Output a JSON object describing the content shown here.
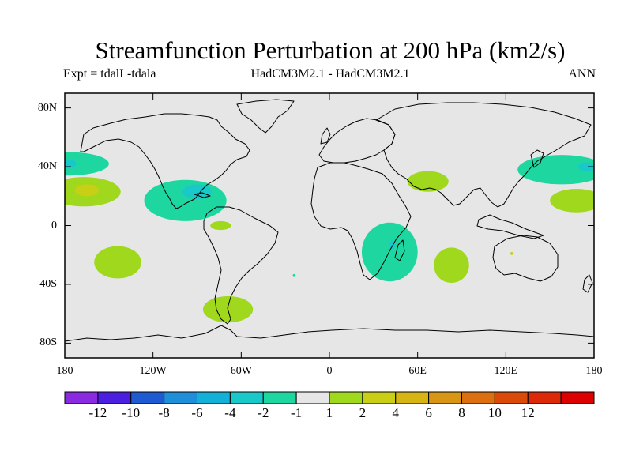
{
  "title": "Streamfunction Perturbation at 200 hPa (km2/s)",
  "subtitle_left": "Expt = tdalL-tdala",
  "subtitle_center": "HadCM3M2.1 - HadCM3M2.1",
  "subtitle_right": "ANN",
  "map": {
    "projection": "cylindrical equidistant",
    "lon_range": [
      -180,
      180
    ],
    "lat_range": [
      -90,
      90
    ],
    "ocean_color": "#e6e6e6",
    "y_ticks": [
      {
        "label": "80N",
        "lat": 80
      },
      {
        "label": "40N",
        "lat": 40
      },
      {
        "label": "0",
        "lat": 0
      },
      {
        "label": "40S",
        "lat": -40
      },
      {
        "label": "80S",
        "lat": -80
      }
    ],
    "x_ticks": [
      {
        "label": "180",
        "lon": -180
      },
      {
        "label": "120W",
        "lon": -120
      },
      {
        "label": "60W",
        "lon": -60
      },
      {
        "label": "0",
        "lon": 0
      },
      {
        "label": "60E",
        "lon": 60
      },
      {
        "label": "120E",
        "lon": 120
      },
      {
        "label": "180",
        "lon": 180
      }
    ]
  },
  "colorbar": {
    "colors": [
      "#8a2be2",
      "#4b1fe0",
      "#1e5ad2",
      "#1e8fd8",
      "#14b0d8",
      "#19c9c9",
      "#1ed7a0",
      "#e6e6e6",
      "#a0d81e",
      "#c8cf14",
      "#d6b414",
      "#d89614",
      "#dc7010",
      "#dc4a0a",
      "#dc2a08",
      "#dc0000"
    ],
    "labels": [
      "-12",
      "-10",
      "-8",
      "-6",
      "-4",
      "-2",
      "-1",
      "1",
      "2",
      "4",
      "6",
      "8",
      "10",
      "12"
    ]
  },
  "anomalies": [
    {
      "name": "north-pacific-east-negative",
      "lon": -178,
      "lat": 42,
      "lon_r": 28,
      "lat_r": 8,
      "color": "#1ed7a0"
    },
    {
      "name": "north-pacific-east-core",
      "lon": -178,
      "lat": 42,
      "lon_r": 6,
      "lat_r": 3,
      "color": "#19c9c9"
    },
    {
      "name": "subtropical-pacific-positive",
      "lon": -167,
      "lat": 23,
      "lon_r": 25,
      "lat_r": 10,
      "color": "#a0d81e"
    },
    {
      "name": "subtropical-pacific-core",
      "lon": -165,
      "lat": 24,
      "lon_r": 8,
      "lat_r": 4,
      "color": "#c8cf14"
    },
    {
      "name": "central-america-negative",
      "lon": -98,
      "lat": 17,
      "lon_r": 28,
      "lat_r": 14,
      "color": "#1ed7a0"
    },
    {
      "name": "gulf-core",
      "lon": -90,
      "lat": 23,
      "lon_r": 10,
      "lat_r": 5,
      "color": "#19c9c9"
    },
    {
      "name": "south-pacific-positive",
      "lon": -144,
      "lat": -25,
      "lon_r": 16,
      "lat_r": 11,
      "color": "#a0d81e"
    },
    {
      "name": "amazon-positive",
      "lon": -74,
      "lat": 0,
      "lon_r": 7,
      "lat_r": 3,
      "color": "#a0d81e"
    },
    {
      "name": "patagonia-positive",
      "lon": -69,
      "lat": -57,
      "lon_r": 17,
      "lat_r": 9,
      "color": "#a0d81e"
    },
    {
      "name": "south-atlantic-dot",
      "lon": -24,
      "lat": -34,
      "lon_r": 1,
      "lat_r": 1,
      "color": "#1ed7a0"
    },
    {
      "name": "africa-negative",
      "lon": 41,
      "lat": -18,
      "lon_r": 19,
      "lat_r": 20,
      "color": "#1ed7a0"
    },
    {
      "name": "africa-core",
      "lon": 43,
      "lat": -13,
      "lon_r": 2,
      "lat_r": 3,
      "color": "#19c9c9"
    },
    {
      "name": "arabia-positive",
      "lon": 67,
      "lat": 30,
      "lon_r": 14,
      "lat_r": 7,
      "color": "#a0d81e"
    },
    {
      "name": "indian-ocean-positive",
      "lon": 83,
      "lat": -27,
      "lon_r": 12,
      "lat_r": 12,
      "color": "#a0d81e"
    },
    {
      "name": "west-australia-dot",
      "lon": 124,
      "lat": -19,
      "lon_r": 1,
      "lat_r": 1,
      "color": "#c8cf14"
    },
    {
      "name": "north-pacific-west-negative",
      "lon": 158,
      "lat": 38,
      "lon_r": 30,
      "lat_r": 10,
      "color": "#1ed7a0"
    },
    {
      "name": "north-pacific-west-core",
      "lon": 175,
      "lat": 40,
      "lon_r": 6,
      "lat_r": 3,
      "color": "#19c9c9"
    },
    {
      "name": "west-pacific-positive",
      "lon": 168,
      "lat": 17,
      "lon_r": 18,
      "lat_r": 8,
      "color": "#a0d81e"
    }
  ]
}
